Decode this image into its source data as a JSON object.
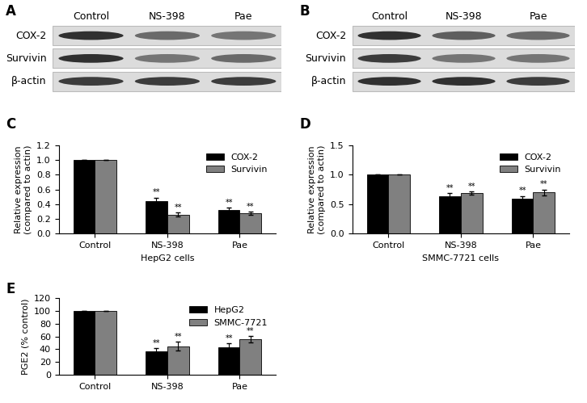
{
  "blots": [
    {
      "annotation": "A",
      "lanes": [
        "Control",
        "NS-398",
        "Pae"
      ],
      "proteins": [
        "COX-2",
        "Survivin",
        "β-actin"
      ],
      "intensity": [
        [
          0.9,
          0.65,
          0.6
        ],
        [
          0.9,
          0.6,
          0.65
        ],
        [
          0.85,
          0.85,
          0.85
        ]
      ]
    },
    {
      "annotation": "B",
      "lanes": [
        "Control",
        "NS-398",
        "Pae"
      ],
      "proteins": [
        "COX-2",
        "Survivin",
        "β-actin"
      ],
      "intensity": [
        [
          0.9,
          0.7,
          0.65
        ],
        [
          0.85,
          0.6,
          0.6
        ],
        [
          0.9,
          0.9,
          0.85
        ]
      ]
    }
  ],
  "chart_data": [
    {
      "type": "bar",
      "annotation": "C",
      "x_label": "HepG2 cells",
      "y_label": "Relative expression\n(compared to actin)",
      "categories": [
        "Control",
        "NS-398",
        "Pae"
      ],
      "series": [
        {
          "name": "COX-2",
          "color": "#000000",
          "values": [
            1.0,
            0.44,
            0.32
          ],
          "errors": [
            0,
            0.05,
            0.03
          ],
          "labels": [
            null,
            "**",
            "**"
          ]
        },
        {
          "name": "Survivin",
          "color": "#808080",
          "values": [
            1.0,
            0.26,
            0.28
          ],
          "errors": [
            0,
            0.03,
            0.02
          ],
          "labels": [
            null,
            "**",
            "**"
          ]
        }
      ],
      "ylim": [
        0,
        1.2
      ],
      "yticks": [
        {
          "value": 0,
          "label": "0.0"
        },
        0.2,
        0.4,
        0.6,
        0.8,
        {
          "value": 1,
          "label": "1.0"
        },
        1.2
      ],
      "legend": "upper right"
    },
    {
      "type": "bar",
      "annotation": "D",
      "x_label": "SMMC-7721 cells",
      "y_label": "Relative expression\n(compared to actin)",
      "categories": [
        "Control",
        "NS-398",
        "Pae"
      ],
      "series": [
        {
          "name": "COX-2",
          "color": "#000000",
          "values": [
            1.0,
            0.64,
            0.6
          ],
          "errors": [
            0,
            0.05,
            0.04
          ],
          "labels": [
            null,
            "**",
            "**"
          ]
        },
        {
          "name": "Survivin",
          "color": "#808080",
          "values": [
            1.0,
            0.69,
            0.7
          ],
          "errors": [
            0,
            0.03,
            0.05
          ],
          "labels": [
            null,
            "**",
            "**"
          ]
        }
      ],
      "ylim": [
        0,
        1.5
      ],
      "yticks": [
        {
          "value": 0,
          "label": "0.0"
        },
        0.5,
        {
          "value": 1,
          "label": "1.0"
        },
        1.5
      ],
      "legend": "upper right"
    },
    {
      "type": "bar",
      "annotation": "E",
      "y_label": "PGE2 (% control)",
      "categories": [
        "Control",
        "NS-398",
        "Pae"
      ],
      "series": [
        {
          "name": "HepG2",
          "color": "#000000",
          "values": [
            100,
            37,
            43
          ],
          "errors": [
            0,
            5,
            6
          ],
          "labels": [
            null,
            "**",
            "**"
          ]
        },
        {
          "name": "SMMC-7721",
          "color": "#808080",
          "values": [
            100,
            45,
            56
          ],
          "errors": [
            0,
            7,
            5
          ],
          "labels": [
            null,
            "**",
            "**"
          ]
        }
      ],
      "ylim": [
        0,
        120
      ],
      "yticks": [
        0,
        20,
        40,
        60,
        80,
        100,
        120
      ],
      "legend": "upper right"
    }
  ]
}
